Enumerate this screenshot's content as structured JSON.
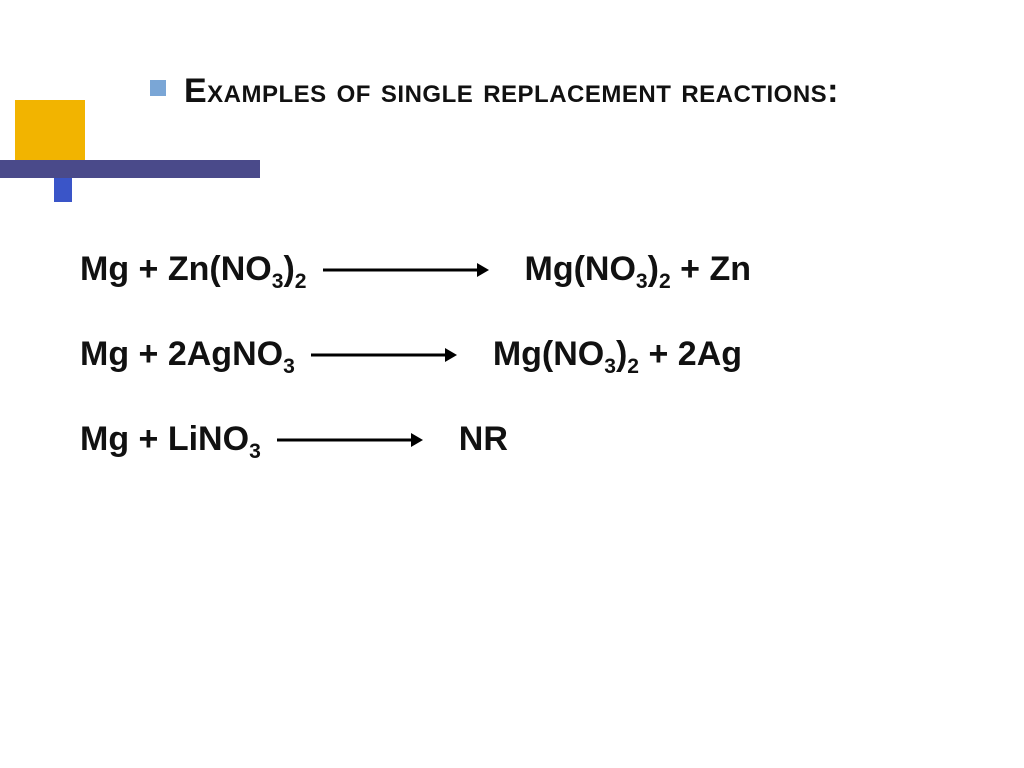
{
  "title": "Examples of single replacement reactions:",
  "colors": {
    "gold_square": "#f2b400",
    "purple_bar": "#4a4a8a",
    "small_blue": "#3a55c8",
    "bullet": "#7aa6d6",
    "text": "#111111",
    "arrow": "#000000",
    "background": "#ffffff"
  },
  "equations": [
    {
      "lhs": "Mg + Zn(NO<sub>3</sub>)<sub>2</sub>",
      "rhs": "Mg(NO<sub>3</sub>)<sub>2</sub> + Zn",
      "arrow_length": 170
    },
    {
      "lhs": "Mg + 2AgNO<sub>3</sub>",
      "rhs": "Mg(NO<sub>3</sub>)<sub>2</sub> + 2Ag",
      "arrow_length": 150
    },
    {
      "lhs": "Mg + LiNO<sub>3</sub>",
      "rhs": "NR",
      "arrow_length": 150
    }
  ],
  "layout": {
    "title_fontsize": 34,
    "equation_fontsize": 34,
    "row_gap": 46,
    "font_family": "Comic Sans MS"
  }
}
